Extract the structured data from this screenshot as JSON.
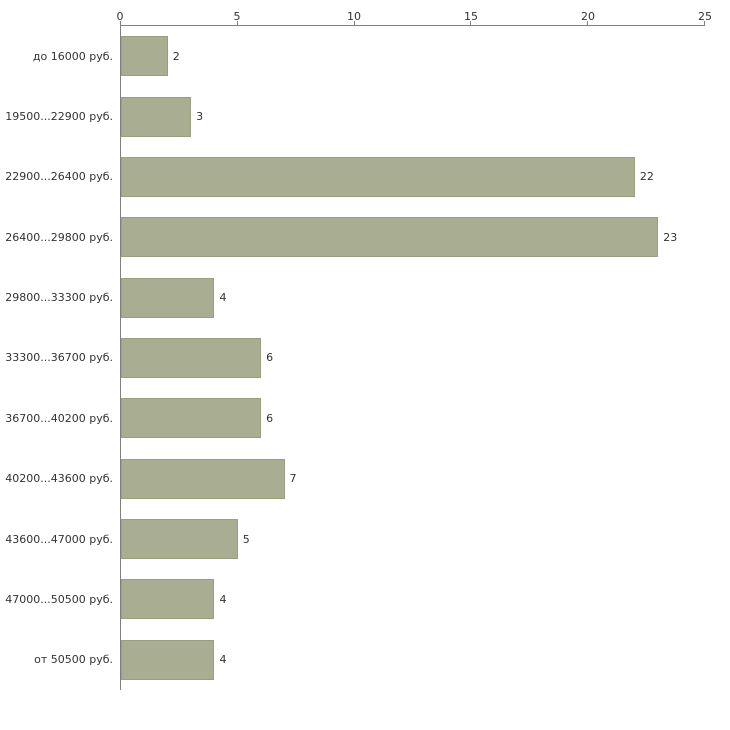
{
  "chart_data": {
    "type": "bar",
    "orientation": "horizontal",
    "title": "",
    "xlabel": "",
    "ylabel": "",
    "xlim": [
      0,
      25
    ],
    "x_ticks": [
      0,
      5,
      10,
      15,
      20,
      25
    ],
    "grid": "off",
    "legend": "none",
    "bar_color": "#a9ad92",
    "bar_border_color": "#9aa07e",
    "axis_color": "#808080",
    "text_color": "#333333",
    "categories": [
      "до 16000 руб.",
      "19500...22900 руб.",
      "22900...26400 руб.",
      "26400...29800 руб.",
      "29800...33300 руб.",
      "33300...36700 руб.",
      "36700...40200 руб.",
      "40200...43600 руб.",
      "43600...47000 руб.",
      "47000...50500 руб.",
      "от 50500 руб."
    ],
    "values": [
      2,
      3,
      22,
      23,
      4,
      6,
      6,
      7,
      5,
      4,
      4
    ]
  }
}
